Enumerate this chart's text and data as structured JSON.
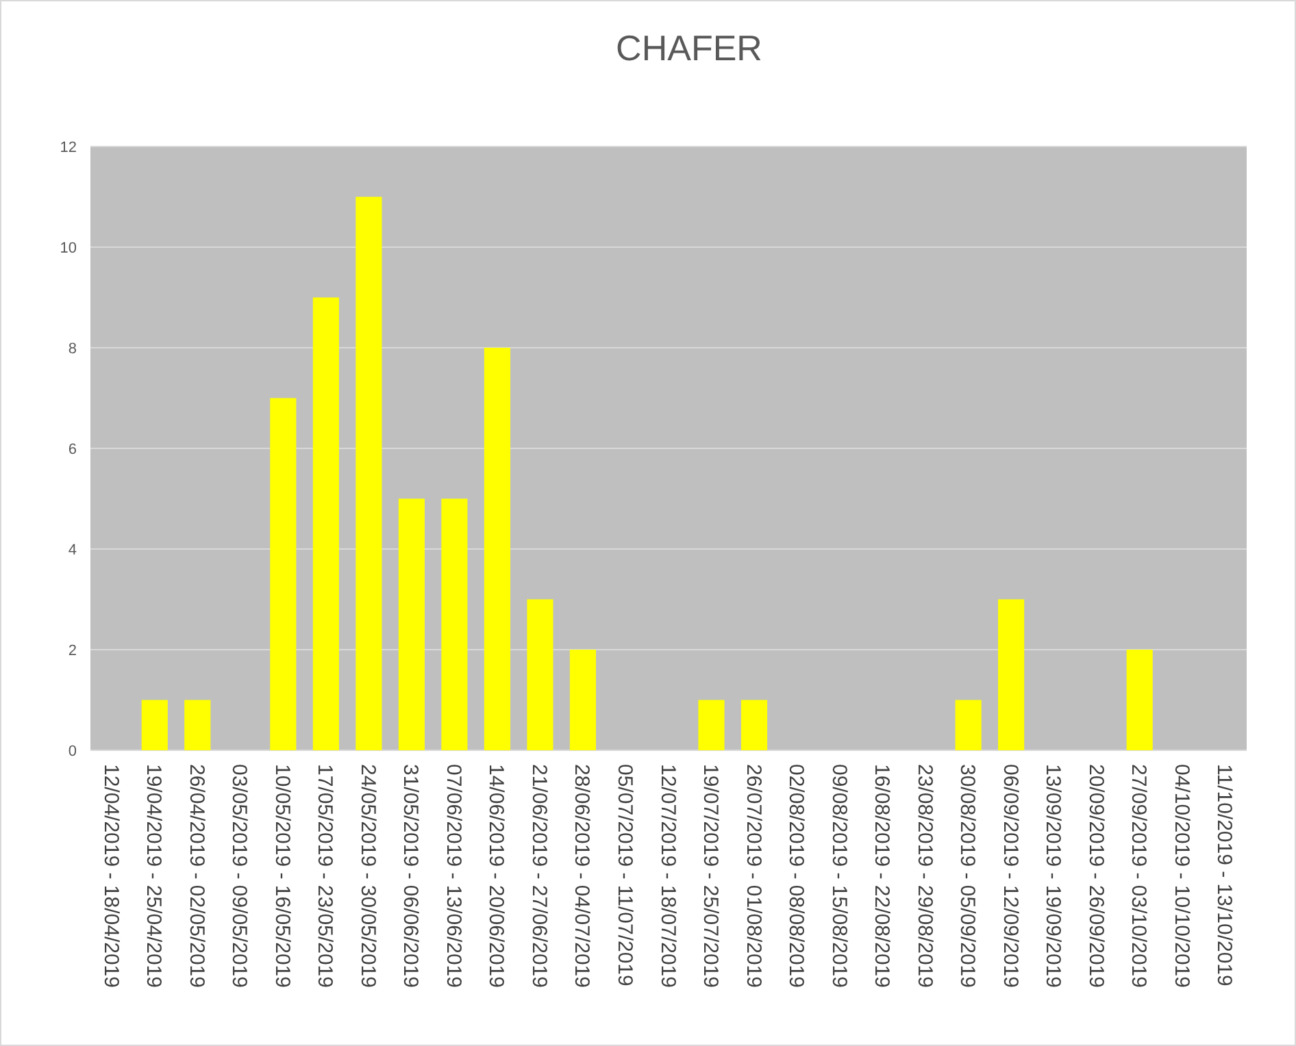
{
  "chart_data": {
    "type": "bar",
    "title": "CHAFER",
    "categories": [
      "12/04/2019 - 18/04/2019",
      "19/04/2019 - 25/04/2019",
      "26/04/2019 - 02/05/2019",
      "03/05/2019 - 09/05/2019",
      "10/05/2019 - 16/05/2019",
      "17/05/2019 - 23/05/2019",
      "24/05/2019 - 30/05/2019",
      "31/05/2019 - 06/06/2019",
      "07/06/2019 - 13/06/2019",
      "14/06/2019 - 20/06/2019",
      "21/06/2019 - 27/06/2019",
      "28/06/2019 - 04/07/2019",
      "05/07/2019 - 11/07/2019",
      "12/07/2019 - 18/07/2019",
      "19/07/2019 - 25/07/2019",
      "26/07/2019 - 01/08/2019",
      "02/08/2019 - 08/08/2019",
      "09/08/2019 - 15/08/2019",
      "16/08/2019 - 22/08/2019",
      "23/08/2019 - 29/08/2019",
      "30/08/2019 - 05/09/2019",
      "06/09/2019 - 12/09/2019",
      "13/09/2019 - 19/09/2019",
      "20/09/2019 - 26/09/2019",
      "27/09/2019 - 03/10/2019",
      "04/10/2019 - 10/10/2019",
      "11/10/2019 - 13/10/2019"
    ],
    "values": [
      0,
      1,
      1,
      0,
      7,
      9,
      11,
      5,
      5,
      8,
      3,
      2,
      0,
      0,
      1,
      1,
      0,
      0,
      0,
      0,
      1,
      3,
      0,
      0,
      2,
      0,
      0
    ],
    "color": "#ffff00",
    "ylim": [
      0,
      12
    ],
    "yticks": [
      0,
      2,
      4,
      6,
      8,
      10,
      12
    ],
    "grid": "y"
  }
}
